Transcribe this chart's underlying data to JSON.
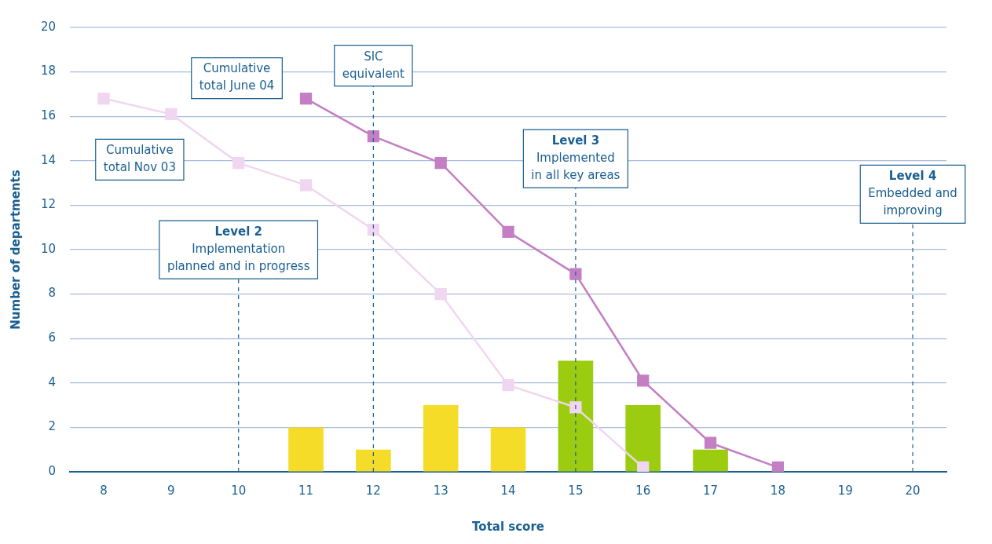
{
  "chart_data": {
    "type": "bar",
    "xlabel": "Total score",
    "ylabel": "Number of departments",
    "x": [
      11,
      12,
      13,
      14,
      15,
      16,
      17
    ],
    "values": [
      2,
      1,
      3,
      2,
      5,
      3,
      1
    ],
    "colors": [
      "#f5dc28",
      "#f5dc28",
      "#f5dc28",
      "#f5dc28",
      "#9ccc10",
      "#9ccc10",
      "#9ccc10"
    ],
    "series": [
      {
        "type": "line",
        "name": "Cumulative\ntotal June 04",
        "color": "#c47ec4",
        "x": [
          11,
          12,
          13,
          14,
          15,
          16,
          17,
          18
        ],
        "values": [
          16.8,
          15.1,
          13.9,
          10.8,
          8.9,
          4.1,
          1.3,
          0.2
        ]
      },
      {
        "type": "line",
        "name": "Cumulative\ntotal Nov 03",
        "color": "#f0d6f0",
        "x": [
          8,
          9,
          10,
          11,
          12,
          13,
          14,
          15,
          16
        ],
        "values": [
          16.8,
          16.1,
          13.9,
          12.9,
          10.9,
          8,
          3.9,
          2.9,
          0.2
        ]
      }
    ],
    "marker": "square",
    "grid": "y",
    "xlim": [
      7.5,
      20.5
    ],
    "xticks": [
      8,
      9,
      10,
      11,
      12,
      13,
      14,
      15,
      16,
      17,
      18,
      19,
      20
    ],
    "ylim": [
      0,
      20
    ],
    "yticks": [
      0,
      2,
      4,
      6,
      8,
      10,
      12,
      14,
      16,
      18,
      20
    ],
    "ref_lines": [
      {
        "axis": "x",
        "value": 10,
        "label": "Level 2\nImplementation\nplanned and in progress",
        "line_style": "dashed",
        "color": "#1a5f91"
      },
      {
        "axis": "x",
        "value": 12,
        "label": "SIC\nequivalent",
        "line_style": "dashed",
        "color": "#1a5f91"
      },
      {
        "axis": "x",
        "value": 15,
        "label": "Level 3\nImplemented\nin all key areas",
        "line_style": "dashed",
        "color": "#1a5f91"
      },
      {
        "axis": "x",
        "value": 20,
        "label": "Level 4\nEmbedded and\nimproving",
        "line_style": "dashed",
        "color": "#1a5f91"
      }
    ]
  }
}
